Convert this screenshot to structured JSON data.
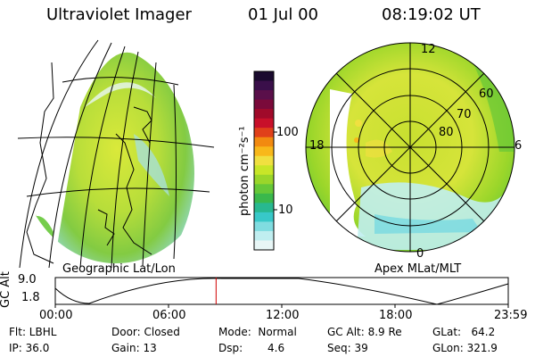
{
  "header": {
    "instrument": "Ultraviolet Imager",
    "date": "01 Jul 00",
    "time": "08:19:02 UT"
  },
  "colorbar": {
    "unit": "photon cm⁻²s⁻¹",
    "ticks": [
      "100",
      "10"
    ],
    "colors": [
      "#1a0a2e",
      "#3a0f4a",
      "#5a0f4a",
      "#7a0a3a",
      "#a00a2a",
      "#c8102a",
      "#e0401a",
      "#f28a10",
      "#f8b81a",
      "#f0e040",
      "#c8e628",
      "#9ad62a",
      "#66c838",
      "#3ab84c",
      "#28b890",
      "#38c8c8",
      "#80dce0",
      "#c0eef0",
      "#e8f6f6"
    ]
  },
  "left_panel": {
    "label": "Geographic Lat/Lon"
  },
  "right_panel": {
    "label": "Apex MLat/MLT",
    "mlt_labels": {
      "top": "12",
      "left": "18",
      "right": "6",
      "bottom": "0"
    },
    "lat_labels": [
      "60",
      "70",
      "80"
    ]
  },
  "altitude_plot": {
    "ylabel": "GC Alt",
    "yticks": [
      "9.0",
      "1.8"
    ],
    "xticks": [
      "00:00",
      "06:00",
      "12:00",
      "18:00",
      "23:59"
    ],
    "current_time_fraction": 0.355
  },
  "status": {
    "flt": "Flt: LBHL",
    "ip": "IP: 36.0",
    "door": "Door: Closed",
    "gain": "Gain: 13",
    "mode": "Mode:  Normal",
    "dsp": "Dsp:",
    "dsp_value": "4.6",
    "gcalt": "GC Alt: 8.9 Re",
    "seq": "Seq: 39",
    "glat": "GLat:   64.2",
    "glon": "GLon: 321.9"
  }
}
